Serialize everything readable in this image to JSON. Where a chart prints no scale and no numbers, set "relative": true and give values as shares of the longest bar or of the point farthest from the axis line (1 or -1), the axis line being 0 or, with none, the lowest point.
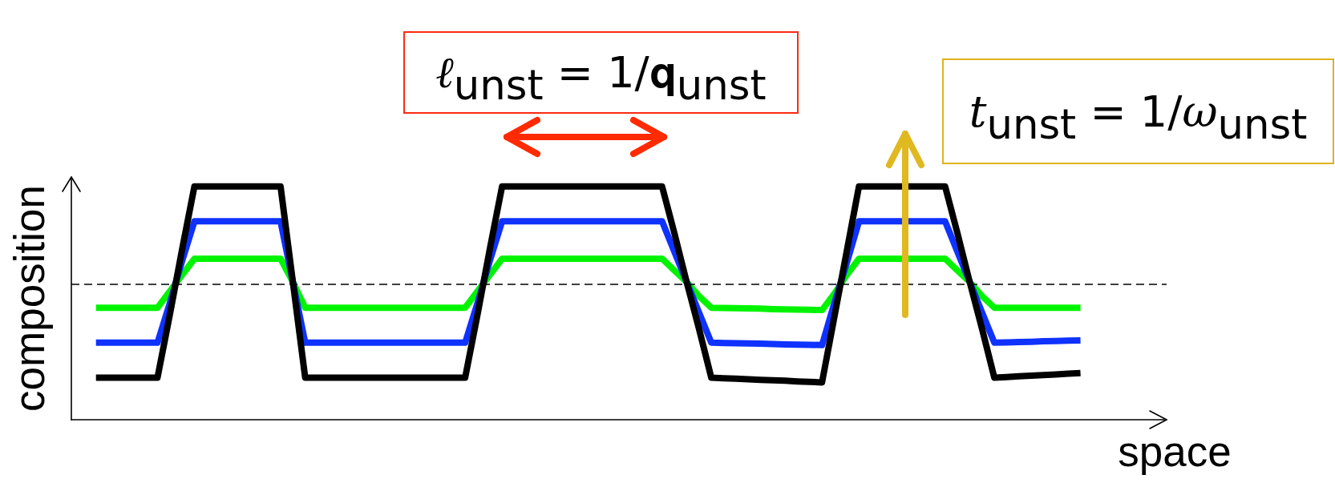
{
  "chart_data": {
    "type": "line",
    "xlabel": "space",
    "ylabel": "composition",
    "relative": true,
    "marker": "none",
    "categories": [
      null,
      null,
      null,
      null,
      null,
      null,
      null,
      null,
      null,
      null,
      null,
      null,
      null,
      null,
      null,
      null,
      null,
      null,
      null,
      null,
      null,
      null,
      null,
      null,
      null,
      null,
      null,
      null,
      null,
      null,
      null,
      null,
      null,
      null,
      null,
      null,
      null,
      null,
      null,
      null,
      null,
      null,
      null,
      null,
      null,
      null,
      null,
      null,
      null,
      null,
      null,
      null,
      null,
      null,
      null,
      null,
      null,
      null,
      null,
      null,
      null,
      null,
      null,
      null,
      null,
      null,
      null,
      null,
      null,
      null,
      null,
      null,
      null,
      null,
      null,
      null,
      null,
      null,
      null,
      null,
      null,
      null,
      null,
      null,
      null,
      null,
      null,
      null,
      null,
      null
    ],
    "series": [
      {
        "color": "#00f400",
        "values": [
          null,
          null,
          0.48,
          0.48,
          0.48,
          0.48,
          0.48,
          0.48,
          0.55,
          0.62,
          0.69,
          0.69,
          0.69,
          0.69,
          0.69,
          0.69,
          0.69,
          0.69,
          0.59,
          0.48,
          0.48,
          0.48,
          0.48,
          0.48,
          0.48,
          0.48,
          0.48,
          0.48,
          0.48,
          0.48,
          0.48,
          0.48,
          0.48,
          0.55,
          0.62,
          0.69,
          0.69,
          0.69,
          0.69,
          0.69,
          0.69,
          0.69,
          0.69,
          0.69,
          0.69,
          0.69,
          0.69,
          0.69,
          0.69,
          0.64,
          0.59,
          0.53,
          0.48,
          0.479,
          0.478,
          0.477,
          0.476,
          0.474,
          0.473,
          0.472,
          0.471,
          0.47,
          0.54,
          0.62,
          0.69,
          0.69,
          0.69,
          0.69,
          0.69,
          0.69,
          0.69,
          0.69,
          0.64,
          0.59,
          0.53,
          0.48,
          0.48,
          0.48,
          0.48,
          0.48,
          0.48,
          0.48,
          0.48,
          null,
          null,
          null,
          null,
          null,
          null,
          null
        ]
      },
      {
        "color": "#0f32ff",
        "values": [
          null,
          null,
          0.33,
          0.33,
          0.33,
          0.33,
          0.33,
          0.33,
          0.5,
          0.68,
          0.85,
          0.85,
          0.85,
          0.85,
          0.85,
          0.85,
          0.85,
          0.85,
          0.59,
          0.33,
          0.33,
          0.33,
          0.33,
          0.33,
          0.33,
          0.33,
          0.33,
          0.33,
          0.33,
          0.33,
          0.33,
          0.33,
          0.33,
          0.5,
          0.68,
          0.85,
          0.85,
          0.85,
          0.85,
          0.85,
          0.85,
          0.85,
          0.85,
          0.85,
          0.85,
          0.85,
          0.85,
          0.85,
          0.85,
          0.72,
          0.59,
          0.46,
          0.33,
          0.329,
          0.328,
          0.327,
          0.326,
          0.324,
          0.323,
          0.322,
          0.321,
          0.32,
          0.5,
          0.67,
          0.85,
          0.85,
          0.85,
          0.85,
          0.85,
          0.85,
          0.85,
          0.85,
          0.72,
          0.59,
          0.46,
          0.33,
          0.331,
          0.333,
          0.334,
          0.336,
          0.337,
          0.339,
          0.34,
          null,
          null,
          null,
          null,
          null,
          null,
          null
        ]
      },
      {
        "color": "#000000",
        "values": [
          null,
          null,
          0.18,
          0.18,
          0.18,
          0.18,
          0.18,
          0.18,
          0.45,
          0.73,
          1,
          1,
          1,
          1,
          1,
          1,
          1,
          1,
          0.59,
          0.18,
          0.18,
          0.18,
          0.18,
          0.18,
          0.18,
          0.18,
          0.18,
          0.18,
          0.18,
          0.18,
          0.18,
          0.18,
          0.18,
          0.45,
          0.73,
          1,
          1,
          1,
          1,
          1,
          1,
          1,
          1,
          1,
          1,
          1,
          1,
          1,
          1,
          0.8,
          0.59,
          0.39,
          0.18,
          0.178,
          0.176,
          0.173,
          0.171,
          0.169,
          0.167,
          0.164,
          0.162,
          0.16,
          0.44,
          0.72,
          1,
          1,
          1,
          1,
          1,
          1,
          1,
          1,
          0.8,
          0.59,
          0.39,
          0.18,
          0.183,
          0.186,
          0.189,
          0.191,
          0.194,
          0.197,
          0.2,
          null,
          null,
          null,
          null,
          null,
          null,
          null
        ]
      }
    ],
    "ref_lines": [
      {
        "axis": "y",
        "value": 0.58,
        "color": "#000000",
        "line_style": "dashed"
      }
    ],
    "annotations": [
      "ℓ$_{unst}$ = 1/𝐪$_{unst}$",
      "t$_{unst}$ = 1/ω$_{unst}$"
    ]
  }
}
